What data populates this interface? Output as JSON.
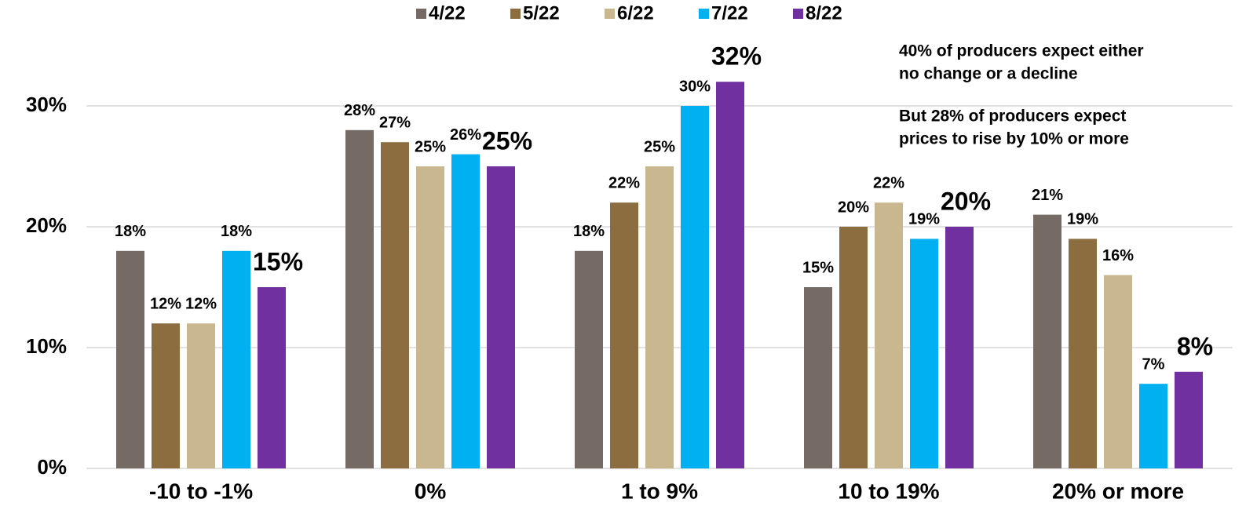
{
  "chart_data": {
    "type": "bar",
    "categories": [
      "-10 to -1%",
      "0%",
      "1 to 9%",
      "10 to 19%",
      "20% or more"
    ],
    "series": [
      {
        "name": "4/22",
        "color": "#756b64",
        "values": [
          18,
          28,
          18,
          15,
          21
        ],
        "value_labels": [
          "18%",
          "28%",
          "18%",
          "15%",
          "21%"
        ]
      },
      {
        "name": "5/22",
        "color": "#8b6d3f",
        "values": [
          12,
          27,
          22,
          20,
          19
        ],
        "value_labels": [
          "12%",
          "27%",
          "22%",
          "20%",
          "19%"
        ]
      },
      {
        "name": "6/22",
        "color": "#c9b88f",
        "values": [
          12,
          25,
          25,
          22,
          16
        ],
        "value_labels": [
          "12%",
          "25%",
          "25%",
          "22%",
          "16%"
        ]
      },
      {
        "name": "7/22",
        "color": "#00b0f0",
        "values": [
          18,
          26,
          30,
          19,
          7
        ],
        "value_labels": [
          "18%",
          "26%",
          "30%",
          "19%",
          "7%"
        ]
      },
      {
        "name": "8/22",
        "color": "#7030a0",
        "values": [
          15,
          25,
          32,
          20,
          8
        ],
        "value_labels": [
          "15%",
          "25%",
          "32%",
          "20%",
          "8%"
        ]
      }
    ],
    "ylim": [
      0,
      35
    ],
    "yticks": [
      {
        "value": 0,
        "label": "0%"
      },
      {
        "value": 10,
        "label": "10%"
      },
      {
        "value": 20,
        "label": "20%"
      },
      {
        "value": 30,
        "label": "30%"
      }
    ],
    "grid": true,
    "legend": "top",
    "annotations": [
      [
        "40% of producers expect either",
        "no change or a decline"
      ],
      [
        "But 28% of producers expect",
        "prices to rise by 10% or more"
      ]
    ]
  }
}
